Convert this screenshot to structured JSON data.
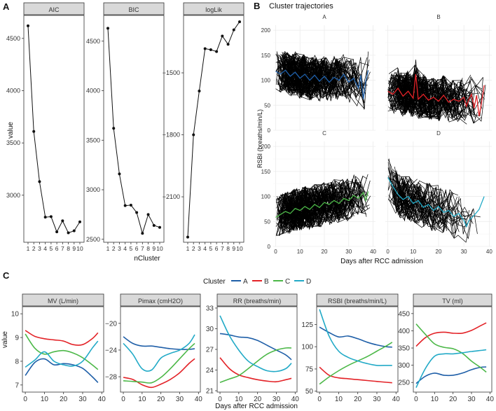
{
  "chart_data": [
    {
      "panel": "A",
      "type": "line",
      "ylabel": "value",
      "xlabel": "nCluster",
      "x": [
        "1",
        "2",
        "3",
        "4",
        "5",
        "6",
        "7",
        "8",
        "9",
        "10"
      ],
      "facets": [
        {
          "title": "AIC",
          "values": [
            4620,
            3610,
            3130,
            2790,
            2795,
            2650,
            2755,
            2640,
            2660,
            2745
          ],
          "ylim": [
            2550,
            4720
          ],
          "ticks": [
            3000,
            3500,
            4000,
            4500
          ]
        },
        {
          "title": "BIC",
          "values": [
            4630,
            3620,
            3160,
            2840,
            2845,
            2770,
            2560,
            2750,
            2640,
            2620
          ],
          "ylim": [
            2470,
            4760
          ],
          "ticks": [
            2500,
            3000,
            3500,
            4000,
            4500
          ]
        },
        {
          "title": "logLik",
          "values": [
            -2295,
            -1800,
            -1588,
            -1383,
            -1388,
            -1397,
            -1322,
            -1362,
            -1292,
            -1253
          ],
          "ylim": [
            -2320,
            -1222
          ],
          "ticks": [
            -2100,
            -1800,
            -1500
          ]
        }
      ]
    },
    {
      "panel": "B",
      "type": "line",
      "title": "Cluster trajectories",
      "ylabel": "RSBI (breaths/min/L)",
      "xlabel": "Days after RCC admission",
      "xlim": [
        -1,
        41
      ],
      "ylim": [
        0,
        210
      ],
      "xticks": [
        0,
        10,
        20,
        30,
        40
      ],
      "yticks": [
        0,
        50,
        100,
        150,
        200
      ],
      "facets": [
        {
          "title": "A",
          "color": "#1f5fa8",
          "mean": [
            [
              0,
              118
            ],
            [
              2,
              112
            ],
            [
              4,
              120
            ],
            [
              6,
              108
            ],
            [
              8,
              116
            ],
            [
              10,
              104
            ],
            [
              12,
              112
            ],
            [
              14,
              100
            ],
            [
              16,
              110
            ],
            [
              18,
              98
            ],
            [
              20,
              108
            ],
            [
              22,
              96
            ],
            [
              24,
              106
            ],
            [
              26,
              100
            ],
            [
              28,
              112
            ],
            [
              30,
              96
            ],
            [
              32,
              104
            ],
            [
              34,
              84
            ],
            [
              35,
              110
            ],
            [
              36,
              62
            ],
            [
              37,
              98
            ],
            [
              38,
              120
            ]
          ]
        },
        {
          "title": "B",
          "color": "#e32227",
          "mean": [
            [
              0,
              78
            ],
            [
              2,
              72
            ],
            [
              4,
              84
            ],
            [
              6,
              68
            ],
            [
              8,
              78
            ],
            [
              10,
              64
            ],
            [
              11,
              112
            ],
            [
              12,
              62
            ],
            [
              14,
              72
            ],
            [
              16,
              60
            ],
            [
              18,
              66
            ],
            [
              20,
              58
            ],
            [
              22,
              70
            ],
            [
              24,
              56
            ],
            [
              26,
              62
            ],
            [
              28,
              58
            ],
            [
              30,
              66
            ],
            [
              31,
              48
            ],
            [
              32,
              62
            ],
            [
              33,
              72
            ],
            [
              34,
              44
            ],
            [
              35,
              70
            ],
            [
              36,
              28
            ],
            [
              37,
              56
            ],
            [
              38,
              90
            ]
          ]
        },
        {
          "title": "C",
          "color": "#4cb848",
          "mean": [
            [
              0,
              58
            ],
            [
              2,
              64
            ],
            [
              4,
              70
            ],
            [
              6,
              66
            ],
            [
              8,
              76
            ],
            [
              10,
              72
            ],
            [
              12,
              80
            ],
            [
              14,
              74
            ],
            [
              16,
              84
            ],
            [
              18,
              78
            ],
            [
              20,
              88
            ],
            [
              22,
              84
            ],
            [
              24,
              92
            ],
            [
              26,
              86
            ],
            [
              28,
              96
            ],
            [
              30,
              92
            ],
            [
              32,
              102
            ],
            [
              34,
              96
            ],
            [
              36,
              108
            ],
            [
              37,
              92
            ],
            [
              38,
              110
            ]
          ]
        },
        {
          "title": "D",
          "color": "#22aac7",
          "mean": [
            [
              0,
              138
            ],
            [
              2,
              120
            ],
            [
              4,
              104
            ],
            [
              6,
              94
            ],
            [
              8,
              100
            ],
            [
              10,
              86
            ],
            [
              12,
              92
            ],
            [
              14,
              78
            ],
            [
              16,
              84
            ],
            [
              18,
              72
            ],
            [
              20,
              80
            ],
            [
              22,
              68
            ],
            [
              24,
              72
            ],
            [
              26,
              60
            ],
            [
              28,
              66
            ],
            [
              30,
              52
            ],
            [
              31,
              40
            ],
            [
              32,
              52
            ],
            [
              34,
              62
            ],
            [
              36,
              74
            ],
            [
              38,
              100
            ]
          ]
        }
      ]
    },
    {
      "panel": "C",
      "type": "line",
      "xlabel": "Days after RCC admission",
      "ylabel": "value",
      "legend_title": "Cluster",
      "legend": [
        {
          "name": "A",
          "color": "#1f5fa8"
        },
        {
          "name": "B",
          "color": "#e32227"
        },
        {
          "name": "C",
          "color": "#4cb848"
        },
        {
          "name": "D",
          "color": "#22aac7"
        }
      ],
      "x": [
        0,
        5,
        10,
        15,
        20,
        25,
        30,
        35,
        38
      ],
      "xticks": [
        0,
        10,
        20,
        30,
        40
      ],
      "facets": [
        {
          "title": "MV (L/min)",
          "ylim": [
            6.7,
            10.3
          ],
          "yticks": [
            7,
            8,
            9,
            10
          ],
          "series": [
            {
              "name": "A",
              "values": [
                7.4,
                7.95,
                8.1,
                7.85,
                7.9,
                7.85,
                7.7,
                7.35,
                7.1
              ]
            },
            {
              "name": "B",
              "values": [
                9.3,
                9.05,
                8.95,
                8.9,
                8.85,
                8.7,
                8.7,
                8.95,
                9.2
              ]
            },
            {
              "name": "C",
              "values": [
                9.15,
                8.55,
                8.3,
                8.4,
                8.45,
                8.35,
                8.15,
                7.85,
                7.65
              ]
            },
            {
              "name": "D",
              "values": [
                7.75,
                8.05,
                8.4,
                8.0,
                7.85,
                7.8,
                8.0,
                8.55,
                8.85
              ]
            }
          ]
        },
        {
          "title": "Pimax (cmH2O)",
          "ylim": [
            -30.3,
            -17.5
          ],
          "yticks": [
            -28,
            -24,
            -20
          ],
          "series": [
            {
              "name": "A",
              "values": [
                -22.0,
                -23.0,
                -23.4,
                -23.4,
                -23.6,
                -23.8,
                -23.9,
                -23.9,
                -23.8
              ]
            },
            {
              "name": "B",
              "values": [
                -28.1,
                -28.4,
                -29.2,
                -29.6,
                -29.1,
                -28.4,
                -27.4,
                -26.0,
                -25.3
              ]
            },
            {
              "name": "C",
              "values": [
                -28.6,
                -28.7,
                -28.8,
                -28.9,
                -28.1,
                -26.8,
                -25.3,
                -23.8,
                -23.0
              ]
            },
            {
              "name": "D",
              "values": [
                -23.0,
                -24.6,
                -26.8,
                -27.0,
                -25.2,
                -24.5,
                -24.0,
                -23.0,
                -21.7
              ]
            }
          ]
        },
        {
          "title": "RR (breaths/min)",
          "ylim": [
            20.8,
            33.2
          ],
          "yticks": [
            21,
            24,
            27,
            30,
            33
          ],
          "series": [
            {
              "name": "A",
              "values": [
                29.3,
                29.1,
                28.8,
                28.7,
                28.3,
                27.6,
                26.9,
                26.2,
                25.5
              ]
            },
            {
              "name": "B",
              "values": [
                25.8,
                24.2,
                23.3,
                22.9,
                22.6,
                22.4,
                22.3,
                22.6,
                22.8
              ]
            },
            {
              "name": "C",
              "values": [
                22.2,
                22.7,
                23.2,
                24.2,
                25.3,
                26.3,
                26.9,
                27.2,
                27.2
              ]
            },
            {
              "name": "D",
              "values": [
                31.9,
                29.0,
                26.9,
                25.3,
                24.5,
                23.9,
                23.8,
                24.2,
                25.0
              ]
            }
          ]
        },
        {
          "title": "RSBI (breaths/min/L)",
          "ylim": [
            49,
            145
          ],
          "yticks": [
            50,
            75,
            100,
            125
          ],
          "series": [
            {
              "name": "A",
              "values": [
                122,
                116,
                111,
                112,
                109,
                105,
                102,
                100,
                99.5
              ]
            },
            {
              "name": "B",
              "values": [
                77,
                68,
                65,
                64,
                63,
                62,
                61,
                60,
                59.5
              ]
            },
            {
              "name": "C",
              "values": [
                58,
                66,
                73,
                79,
                84,
                89,
                95,
                101,
                105
              ]
            },
            {
              "name": "D",
              "values": [
                142,
                112,
                95,
                88,
                84,
                81,
                79,
                79,
                79
              ]
            }
          ]
        },
        {
          "title": "TV (ml)",
          "ylim": [
            222,
            470
          ],
          "yticks": [
            250,
            300,
            350,
            400,
            450
          ],
          "series": [
            {
              "name": "A",
              "values": [
                247,
                268,
                277,
                271,
                271,
                277,
                287,
                294,
                295
              ]
            },
            {
              "name": "B",
              "values": [
                355,
                380,
                393,
                396,
                393,
                393,
                401,
                415,
                423
              ]
            },
            {
              "name": "C",
              "values": [
                420,
                390,
                362,
                352,
                348,
                335,
                312,
                293,
                280
              ]
            },
            {
              "name": "D",
              "values": [
                235,
                290,
                326,
                333,
                333,
                336,
                340,
                343,
                345
              ]
            }
          ]
        }
      ]
    }
  ]
}
